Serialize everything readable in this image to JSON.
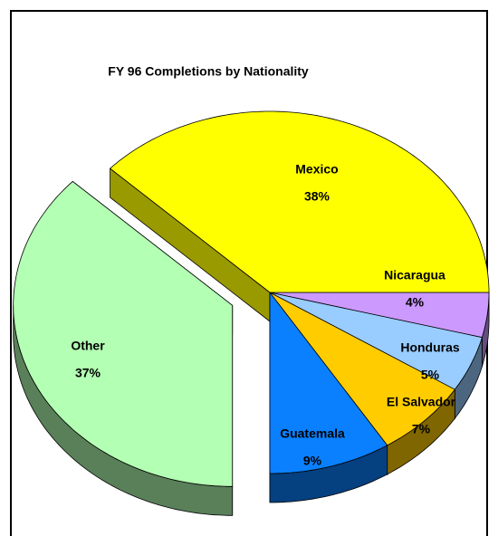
{
  "chart_data": {
    "type": "pie",
    "title": "FY 96 Completions by Nationality",
    "categories": [
      "Nicaragua",
      "Honduras",
      "El Salvador",
      "Guatemala",
      "Other",
      "Mexico"
    ],
    "values": [
      4,
      5,
      7,
      9,
      37,
      38
    ],
    "value_labels": [
      "4%",
      "5%",
      "7%",
      "9%",
      "37%",
      "38%"
    ],
    "colors": [
      "#cc99ff",
      "#99ccff",
      "#ffcc00",
      "#0a80ff",
      "#b3ffb3",
      "#ffff00"
    ],
    "exploded": [
      "Other"
    ]
  }
}
